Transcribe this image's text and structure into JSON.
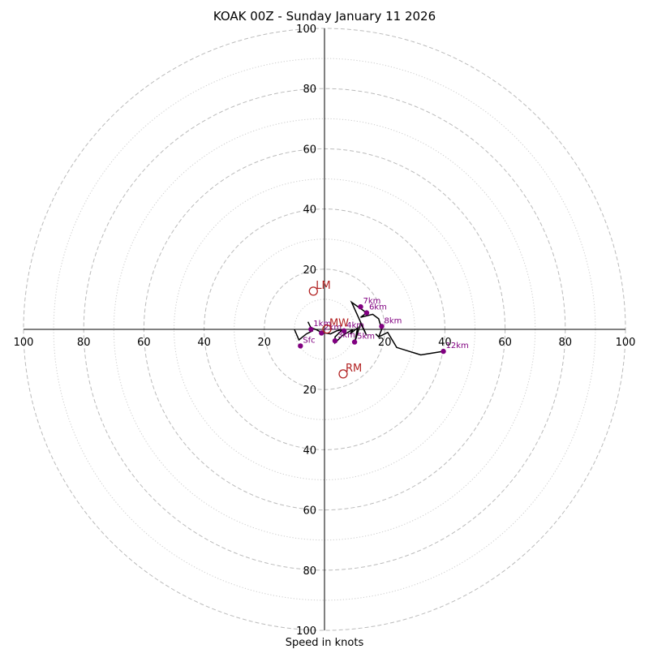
{
  "chart_data": {
    "type": "hodograph",
    "title": "KOAK 00Z - Sunday January 11 2026",
    "xlabel": "Speed in knots",
    "ylabel": "",
    "rings": [
      20,
      40,
      60,
      80,
      100
    ],
    "minor_rings": [
      10,
      30,
      50,
      70,
      90
    ],
    "xlim": [
      -100,
      100
    ],
    "ylim": [
      -100,
      100
    ],
    "x_tick_labels": [
      "100",
      "80",
      "60",
      "40",
      "20",
      "20",
      "40",
      "60",
      "80",
      "100"
    ],
    "x_tick_values": [
      -100,
      -80,
      -60,
      -40,
      -20,
      20,
      40,
      60,
      80,
      100
    ],
    "y_tick_labels": [
      "100",
      "80",
      "60",
      "40",
      "20",
      "20",
      "40",
      "60",
      "80",
      "100"
    ],
    "y_tick_values": [
      100,
      80,
      60,
      40,
      20,
      -20,
      -40,
      -60,
      -80,
      -100
    ],
    "grid": true,
    "colors": {
      "trace": "#000000",
      "height_markers": "#800080",
      "storm_motion": "#b22222",
      "major_grid": "#bbbbbb",
      "minor_grid": "#cccccc"
    },
    "trace": [
      [
        -10,
        0
      ],
      [
        -8.5,
        -3.5
      ],
      [
        -6,
        -1.5
      ],
      [
        -4,
        -0.5
      ],
      [
        -5.5,
        2.5
      ],
      [
        -4.5,
        0.5
      ],
      [
        -3,
        0
      ],
      [
        -1,
        -1
      ],
      [
        2,
        -1.5
      ],
      [
        4,
        -0.5
      ],
      [
        6,
        0
      ],
      [
        3.5,
        -2.5
      ],
      [
        3.5,
        -4.5
      ],
      [
        6,
        -2
      ],
      [
        9.5,
        0
      ],
      [
        8.5,
        -1.5
      ],
      [
        11,
        0.5
      ],
      [
        10,
        -4.5
      ],
      [
        12,
        2
      ],
      [
        14,
        -2
      ],
      [
        9,
        9
      ],
      [
        14,
        5.5
      ],
      [
        12,
        4
      ],
      [
        16,
        5
      ],
      [
        18,
        3.5
      ],
      [
        19,
        0
      ],
      [
        18,
        -2.5
      ],
      [
        17,
        -1.5
      ],
      [
        18,
        -2.5
      ],
      [
        21,
        -1
      ],
      [
        24,
        -6
      ],
      [
        32,
        -8.5
      ],
      [
        40,
        -7.2
      ]
    ],
    "height_points": [
      {
        "label": "Sfc",
        "x": -8,
        "y": -5.5
      },
      {
        "label": "1km",
        "x": -4.5,
        "y": 0
      },
      {
        "label": "2km",
        "x": -1,
        "y": -1.2
      },
      {
        "label": "3km",
        "x": 3.5,
        "y": -3.8
      },
      {
        "label": "4km",
        "x": 6.5,
        "y": -0.5
      },
      {
        "label": "5km",
        "x": 10,
        "y": -4.2
      },
      {
        "label": "6km",
        "x": 14,
        "y": 5.5
      },
      {
        "label": "7km",
        "x": 12,
        "y": 7.5
      },
      {
        "label": "8km",
        "x": 19,
        "y": 1
      },
      {
        "label": "12km",
        "x": 39.5,
        "y": -7.3
      }
    ],
    "storm_motion": [
      {
        "label": "LM",
        "x": -3.7,
        "y": 12.7
      },
      {
        "label": "MW",
        "x": 0.8,
        "y": 0.1
      },
      {
        "label": "RM",
        "x": 6.2,
        "y": -14.8
      }
    ]
  }
}
